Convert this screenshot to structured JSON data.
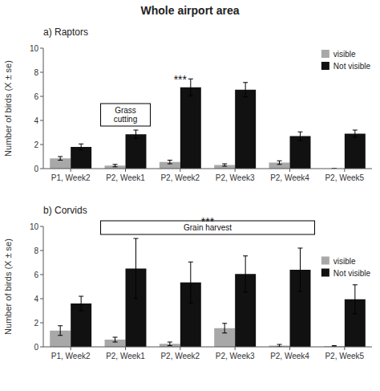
{
  "title": "Whole airport area",
  "chart_data": [
    {
      "type": "bar",
      "title": "a) Raptors",
      "categories": [
        "P1, Week2",
        "P2, Week1",
        "P2, Week2",
        "P2, Week3",
        "P2, Week4",
        "P2, Week5"
      ],
      "series": [
        {
          "name": "visible",
          "color": "#a8a8a8",
          "values": [
            0.85,
            0.25,
            0.55,
            0.3,
            0.5,
            0.0
          ],
          "errors": [
            0.15,
            0.1,
            0.15,
            0.1,
            0.15,
            0.0
          ]
        },
        {
          "name": "Not visible",
          "color": "#111111",
          "values": [
            1.8,
            2.85,
            6.75,
            6.55,
            2.7,
            2.9
          ],
          "errors": [
            0.25,
            0.35,
            0.7,
            0.6,
            0.35,
            0.3
          ]
        }
      ],
      "ylabel": "Number of birds (X ± se)",
      "ylim": [
        0,
        10
      ],
      "yticks": [
        0,
        2,
        4,
        6,
        8,
        10
      ],
      "grid": false,
      "legend": "upper right",
      "annotations": [
        {
          "text": "Grass\ncutting",
          "categories": [
            "P2, Week1"
          ]
        },
        {
          "text": "***",
          "categories": [
            "P2, Week2"
          ]
        }
      ]
    },
    {
      "type": "bar",
      "title": "b) Corvids",
      "categories": [
        "P1, Week2",
        "P2, Week1",
        "P2, Week2",
        "P2, Week3",
        "P2, Week4",
        "P2, Week5"
      ],
      "series": [
        {
          "name": "visible",
          "color": "#a8a8a8",
          "values": [
            1.35,
            0.6,
            0.25,
            1.55,
            0.1,
            0.05
          ],
          "errors": [
            0.4,
            0.2,
            0.15,
            0.4,
            0.1,
            0.05
          ]
        },
        {
          "name": "Not visible",
          "color": "#111111",
          "values": [
            3.6,
            6.5,
            5.35,
            6.05,
            6.4,
            3.95
          ],
          "errors": [
            0.6,
            2.5,
            1.7,
            1.5,
            1.8,
            1.2
          ]
        }
      ],
      "ylabel": "Number of birds (X ± se)",
      "ylim": [
        0,
        10
      ],
      "yticks": [
        0,
        2,
        4,
        6,
        8,
        10
      ],
      "grid": false,
      "legend": "right",
      "annotations": [
        {
          "text": "Grain harvest",
          "categories": [
            "P2, Week1",
            "P2, Week2",
            "P2, Week3",
            "P2, Week4"
          ]
        },
        {
          "text": "***",
          "categories": [
            "P2, Week1",
            "P2, Week2",
            "P2, Week3",
            "P2, Week4"
          ]
        }
      ]
    }
  ]
}
